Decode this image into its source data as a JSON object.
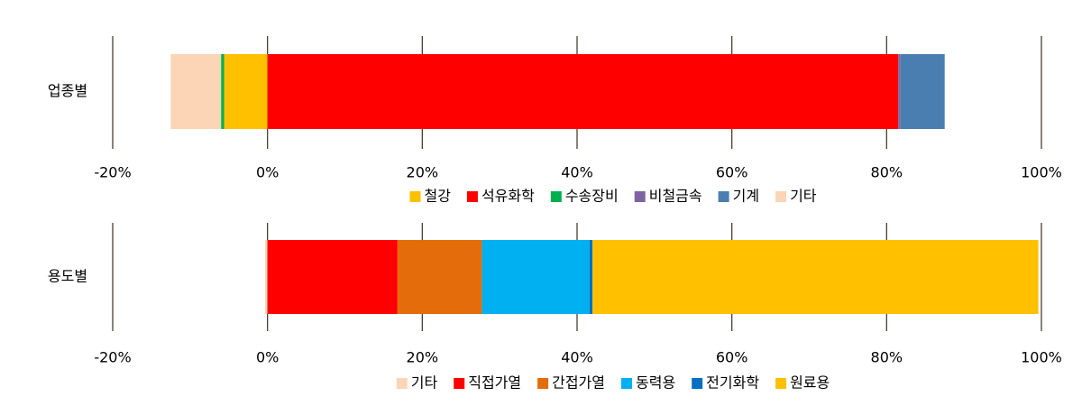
{
  "chart_data": [
    {
      "type": "bar",
      "orientation": "horizontal",
      "stacked": true,
      "categories": [
        "업종별"
      ],
      "xlim": [
        -20,
        100
      ],
      "xticks": [
        {
          "value": -20,
          "label": "-20%"
        },
        {
          "value": 0,
          "label": "0%"
        },
        {
          "value": 20,
          "label": "20%"
        },
        {
          "value": 40,
          "label": "40%"
        },
        {
          "value": 60,
          "label": "60%"
        },
        {
          "value": 80,
          "label": "80%"
        },
        {
          "value": 100,
          "label": "100%"
        }
      ],
      "grid": true,
      "legend": "bottom",
      "series": [
        {
          "name": "철강",
          "color": "#ffc000",
          "values": [
            -5.6
          ]
        },
        {
          "name": "석유화학",
          "color": "#ff0000",
          "values": [
            81.5
          ]
        },
        {
          "name": "수송장비",
          "color": "#00b050",
          "values": [
            -0.4
          ]
        },
        {
          "name": "비철금속",
          "color": "#8064a2",
          "values": [
            0.3
          ]
        },
        {
          "name": "기계",
          "color": "#4a7eb0",
          "values": [
            5.7
          ]
        },
        {
          "name": "기타",
          "color": "#fbd5b5",
          "values": [
            -6.5
          ]
        }
      ]
    },
    {
      "type": "bar",
      "orientation": "horizontal",
      "stacked": true,
      "categories": [
        "용도별"
      ],
      "xlim": [
        -20,
        100
      ],
      "xticks": [
        {
          "value": -20,
          "label": "-20%"
        },
        {
          "value": 0,
          "label": "0%"
        },
        {
          "value": 20,
          "label": "20%"
        },
        {
          "value": 40,
          "label": "40%"
        },
        {
          "value": 60,
          "label": "60%"
        },
        {
          "value": 80,
          "label": "80%"
        },
        {
          "value": 100,
          "label": "100%"
        }
      ],
      "grid": true,
      "legend": "bottom",
      "series": [
        {
          "name": "기타",
          "color": "#fbd5b5",
          "values": [
            -0.3
          ]
        },
        {
          "name": "직접가열",
          "color": "#ff0000",
          "values": [
            16.8
          ]
        },
        {
          "name": "간접가열",
          "color": "#e46c0a",
          "values": [
            10.9
          ]
        },
        {
          "name": "동력용",
          "color": "#00b0f0",
          "values": [
            13.9
          ]
        },
        {
          "name": "전기화학",
          "color": "#0070c0",
          "values": [
            0.4
          ]
        },
        {
          "name": "원료용",
          "color": "#ffc000",
          "values": [
            57.6
          ]
        }
      ]
    }
  ]
}
